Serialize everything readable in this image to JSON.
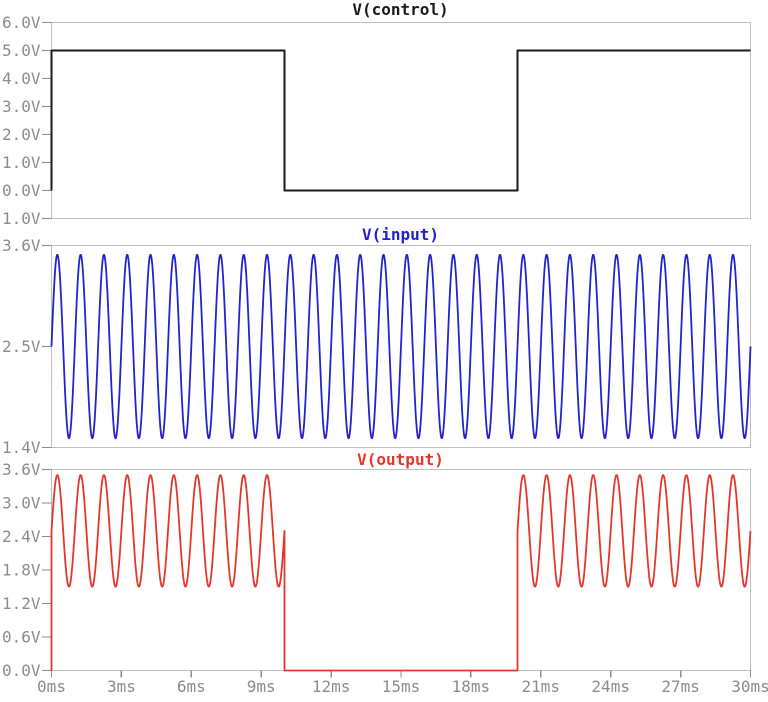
{
  "figure": {
    "background_color": "#ffffff",
    "axis_box_color": "#bfbfbf",
    "tick_label_color": "#8c8c8c",
    "x_axis": {
      "unit": "ms",
      "xlim_ms": [
        0,
        30
      ],
      "ticks": [
        {
          "value": 0,
          "label": "0ms"
        },
        {
          "value": 3,
          "label": "3ms"
        },
        {
          "value": 6,
          "label": "6ms"
        },
        {
          "value": 9,
          "label": "9ms"
        },
        {
          "value": 12,
          "label": "12ms"
        },
        {
          "value": 15,
          "label": "15ms"
        },
        {
          "value": 18,
          "label": "18ms"
        },
        {
          "value": 21,
          "label": "21ms"
        },
        {
          "value": 24,
          "label": "24ms"
        },
        {
          "value": 27,
          "label": "27ms"
        },
        {
          "value": 30,
          "label": "30ms"
        }
      ]
    }
  },
  "chart_data": [
    {
      "type": "line",
      "title": "V(control)",
      "color": "#1a1a1a",
      "xlim_ms": [
        0,
        30
      ],
      "ylim_v": [
        -1.0,
        6.0
      ],
      "y_ticks": [
        {
          "value": 6.0,
          "label": "6.0V"
        },
        {
          "value": 5.0,
          "label": "5.0V"
        },
        {
          "value": 4.0,
          "label": "4.0V"
        },
        {
          "value": 3.0,
          "label": "3.0V"
        },
        {
          "value": 2.0,
          "label": "2.0V"
        },
        {
          "value": 1.0,
          "label": "1.0V"
        },
        {
          "value": 0.0,
          "label": "0.0V"
        },
        {
          "value": -1.0,
          "label": "-1.0V"
        }
      ],
      "series": [
        {
          "name": "V(control)",
          "description": "square pulse: 5V from 0-10ms, 0V from 10-20ms, 5V from 20-30ms",
          "points_t_v": [
            [
              0,
              0
            ],
            [
              0,
              5
            ],
            [
              10,
              5
            ],
            [
              10,
              0
            ],
            [
              20,
              0
            ],
            [
              20,
              5
            ],
            [
              30,
              5
            ]
          ]
        }
      ]
    },
    {
      "type": "line",
      "title": "V(input)",
      "color": "#2323cd",
      "xlim_ms": [
        0,
        30
      ],
      "ylim_v": [
        1.4,
        3.6
      ],
      "y_ticks": [
        {
          "value": 3.6,
          "label": "3.6V"
        },
        {
          "value": 2.5,
          "label": "2.5V"
        },
        {
          "value": 1.4,
          "label": "1.4V"
        }
      ],
      "series": [
        {
          "name": "V(input)",
          "description": "1 kHz sine, 2.5V offset, 1.0V amplitude, continuous 0-30ms",
          "segments": [
            {
              "kind": "sine",
              "t0_ms": 0,
              "t1_ms": 30,
              "frequency_hz": 1000,
              "amplitude_v": 1.0,
              "offset_v": 2.5
            }
          ]
        }
      ]
    },
    {
      "type": "line",
      "title": "V(output)",
      "color": "#e4372a",
      "xlim_ms": [
        0,
        30
      ],
      "ylim_v": [
        0.0,
        3.6
      ],
      "y_ticks": [
        {
          "value": 3.6,
          "label": "3.6V"
        },
        {
          "value": 3.0,
          "label": "3.0V"
        },
        {
          "value": 2.4,
          "label": "2.4V"
        },
        {
          "value": 1.8,
          "label": "1.8V"
        },
        {
          "value": 1.2,
          "label": "1.2V"
        },
        {
          "value": 0.6,
          "label": "0.6V"
        },
        {
          "value": 0.0,
          "label": "0.0V"
        }
      ],
      "series": [
        {
          "name": "V(output)",
          "description": "input sine passed while control is high; 0V from 10-20ms",
          "initial_point_t_v": [
            0,
            0
          ],
          "segments": [
            {
              "kind": "sine",
              "t0_ms": 0,
              "t1_ms": 10,
              "frequency_hz": 1000,
              "amplitude_v": 1.0,
              "offset_v": 2.5
            },
            {
              "kind": "const",
              "t0_ms": 10,
              "t1_ms": 20,
              "value_v": 0
            },
            {
              "kind": "sine",
              "t0_ms": 20,
              "t1_ms": 30,
              "frequency_hz": 1000,
              "amplitude_v": 1.0,
              "offset_v": 2.5
            }
          ]
        }
      ]
    }
  ]
}
